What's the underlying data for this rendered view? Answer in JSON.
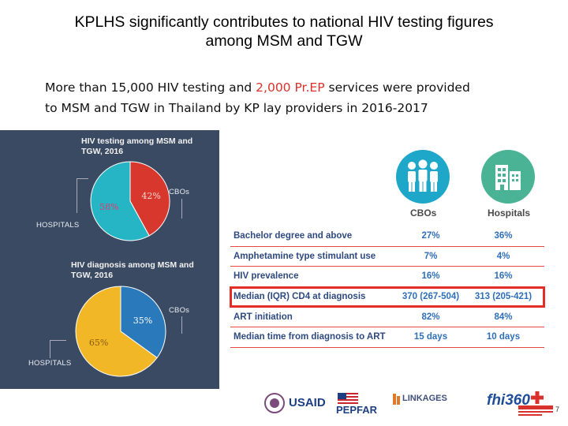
{
  "slide": {
    "title_line1": "KPLHS significantly contributes to national HIV testing figures",
    "title_line2": "among MSM and TGW",
    "subtitle_part1": "More than 15,000 HIV testing and ",
    "subtitle_highlight": "2,000 Pr.EP",
    "subtitle_part2": " services were provided",
    "subtitle_line2": "to MSM and TGW in Thailand by KP lay providers in 2016-2017",
    "page_number": "7"
  },
  "chart_data": [
    {
      "type": "pie",
      "title": "HIV testing among MSM and TGW, 2016",
      "slices": [
        {
          "label": "CBOs",
          "value": 42,
          "display": "42%",
          "color": "#d8372e"
        },
        {
          "label": "HOSPITALS",
          "value": 58,
          "display": "58%",
          "color": "#25b5c4"
        }
      ]
    },
    {
      "type": "pie",
      "title": "HIV diagnosis among MSM and TGW, 2016",
      "slices": [
        {
          "label": "CBOs",
          "value": 35,
          "display": "35%",
          "color": "#2a79ba"
        },
        {
          "label": "HOSPITALS",
          "value": 65,
          "display": "65%",
          "color": "#f1b726"
        }
      ]
    },
    {
      "type": "table",
      "columns": [
        "",
        "CBOs",
        "Hospitals"
      ],
      "rows": [
        {
          "label": "Bachelor degree and above",
          "cbos": "27%",
          "hospitals": "36%"
        },
        {
          "label": "Amphetamine type stimulant use",
          "cbos": "7%",
          "hospitals": "4%"
        },
        {
          "label": "HIV prevalence",
          "cbos": "16%",
          "hospitals": "16%"
        },
        {
          "label": "Median (IQR) CD4 at diagnosis",
          "cbos": "370 (267-504)",
          "hospitals": "313 (205-421)"
        },
        {
          "label": "ART initiation",
          "cbos": "82%",
          "hospitals": "84%"
        },
        {
          "label": "Median time from diagnosis to ART",
          "cbos": "15 days",
          "hospitals": "10 days"
        }
      ]
    }
  ],
  "chart1": {
    "title_line1": "HIV testing among MSM and",
    "title_line2": "TGW, 2016",
    "callout_cbos": "CBOs",
    "callout_hospitals": "HOSPITALS"
  },
  "chart2": {
    "title_line1": "HIV diagnosis among MSM and",
    "title_line2": "TGW, 2016",
    "callout_cbos": "CBOs",
    "callout_hospitals": "HOSPITALS"
  },
  "table": {
    "col_cbos": "CBOs",
    "col_hospitals": "Hospitals",
    "highlight_row_index": 3
  },
  "icons": {
    "cbos_icon": "people-group-icon",
    "hospitals_icon": "building-icon"
  },
  "logos": {
    "usaid": "USAID",
    "pepfar": "PEPFAR",
    "linkages": "LINKAGES",
    "fhi360": "fhi360"
  },
  "colors": {
    "red": "#d8372e",
    "teal": "#25b5c4",
    "blue": "#2a79ba",
    "yellow": "#f1b726",
    "panel": "#3b4a63",
    "table_text": "#2e4a80",
    "table_value": "#2f6fb9"
  }
}
